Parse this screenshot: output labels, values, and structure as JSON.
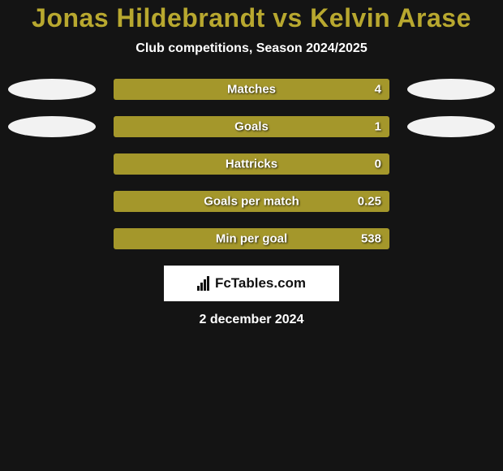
{
  "title": "Jonas Hildebrandt vs Kelvin Arase",
  "subtitle": "Club competitions, Season 2024/2025",
  "attribution": "FcTables.com",
  "date": "2 december 2024",
  "colors": {
    "background": "#141414",
    "accent": "#b8a82f",
    "ellipse": "#f2f2f2",
    "bar_fill": "#a4972b",
    "bar_border": "#a4972b",
    "text": "#ffffff"
  },
  "stats": [
    {
      "label": "Matches",
      "value_text": "4",
      "fill_pct": 100,
      "show_left_ellipse": true,
      "show_right_ellipse": true
    },
    {
      "label": "Goals",
      "value_text": "1",
      "fill_pct": 100,
      "show_left_ellipse": true,
      "show_right_ellipse": true
    },
    {
      "label": "Hattricks",
      "value_text": "0",
      "fill_pct": 100,
      "show_left_ellipse": false,
      "show_right_ellipse": false
    },
    {
      "label": "Goals per match",
      "value_text": "0.25",
      "fill_pct": 100,
      "show_left_ellipse": false,
      "show_right_ellipse": false
    },
    {
      "label": "Min per goal",
      "value_text": "538",
      "fill_pct": 100,
      "show_left_ellipse": false,
      "show_right_ellipse": false
    }
  ]
}
